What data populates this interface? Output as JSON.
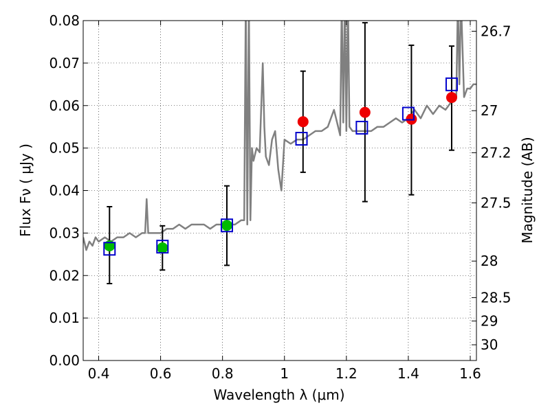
{
  "chart_data": {
    "type": "scatter",
    "title": "",
    "xlabel": "Wavelength  λ (μm)",
    "ylabel": "Flux  Fν  ( μJy )",
    "ylabel_right": "Magnitude (AB)",
    "xlim": [
      0.35,
      1.62
    ],
    "ylim": [
      0.0,
      0.08
    ],
    "grid": true,
    "x_ticks": [
      0.4,
      0.6,
      0.8,
      1.0,
      1.2,
      1.4,
      1.6
    ],
    "x_tick_labels": [
      "0.4",
      "0.6",
      "0.8",
      "1",
      "1.2",
      "1.4",
      "1.6"
    ],
    "y_ticks": [
      0.0,
      0.01,
      0.02,
      0.03,
      0.04,
      0.05,
      0.06,
      0.07,
      0.08
    ],
    "y_tick_labels": [
      "0.00",
      "0.01",
      "0.02",
      "0.03",
      "0.04",
      "0.05",
      "0.06",
      "0.07",
      "0.08"
    ],
    "right_ticks": [
      {
        "label": "26.7",
        "flux": 0.0775
      },
      {
        "label": "27",
        "flux": 0.0588
      },
      {
        "label": "27.2",
        "flux": 0.0489
      },
      {
        "label": "27.5",
        "flux": 0.0371
      },
      {
        "label": "28",
        "flux": 0.0234
      },
      {
        "label": "28.5",
        "flux": 0.0148
      },
      {
        "label": "29",
        "flux": 0.0093
      },
      {
        "label": "30",
        "flux": 0.0037
      }
    ],
    "series": [
      {
        "name": "model-spectrum",
        "type": "line",
        "color": "#808080",
        "x": [
          0.35,
          0.36,
          0.37,
          0.38,
          0.39,
          0.4,
          0.42,
          0.44,
          0.46,
          0.48,
          0.5,
          0.52,
          0.54,
          0.55,
          0.555,
          0.56,
          0.58,
          0.6,
          0.62,
          0.64,
          0.66,
          0.68,
          0.7,
          0.72,
          0.74,
          0.76,
          0.78,
          0.8,
          0.82,
          0.84,
          0.86,
          0.87,
          0.875,
          0.88,
          0.885,
          0.89,
          0.895,
          0.9,
          0.91,
          0.92,
          0.93,
          0.935,
          0.94,
          0.95,
          0.96,
          0.97,
          0.98,
          0.99,
          1.0,
          1.02,
          1.04,
          1.06,
          1.08,
          1.1,
          1.12,
          1.14,
          1.16,
          1.18,
          1.185,
          1.19,
          1.195,
          1.2,
          1.205,
          1.21,
          1.22,
          1.24,
          1.26,
          1.28,
          1.3,
          1.32,
          1.34,
          1.36,
          1.38,
          1.4,
          1.42,
          1.44,
          1.46,
          1.48,
          1.5,
          1.52,
          1.54,
          1.555,
          1.56,
          1.565,
          1.57,
          1.58,
          1.59,
          1.6,
          1.61,
          1.62
        ],
        "y": [
          0.029,
          0.026,
          0.028,
          0.027,
          0.029,
          0.028,
          0.029,
          0.028,
          0.029,
          0.029,
          0.03,
          0.029,
          0.03,
          0.03,
          0.038,
          0.03,
          0.03,
          0.03,
          0.031,
          0.031,
          0.032,
          0.031,
          0.032,
          0.032,
          0.032,
          0.031,
          0.032,
          0.032,
          0.032,
          0.032,
          0.033,
          0.033,
          0.085,
          0.032,
          0.085,
          0.033,
          0.05,
          0.047,
          0.05,
          0.049,
          0.07,
          0.055,
          0.048,
          0.046,
          0.052,
          0.054,
          0.045,
          0.04,
          0.052,
          0.051,
          0.052,
          0.052,
          0.053,
          0.054,
          0.054,
          0.055,
          0.059,
          0.053,
          0.085,
          0.056,
          0.085,
          0.054,
          0.085,
          0.055,
          0.054,
          0.054,
          0.054,
          0.054,
          0.055,
          0.055,
          0.056,
          0.057,
          0.056,
          0.057,
          0.059,
          0.057,
          0.06,
          0.058,
          0.06,
          0.059,
          0.061,
          0.062,
          0.085,
          0.065,
          0.085,
          0.062,
          0.064,
          0.064,
          0.065,
          0.065
        ]
      },
      {
        "name": "model-photometry",
        "type": "scatter",
        "marker": "open-square",
        "color": "#0000cc",
        "x": [
          0.435,
          0.606,
          0.814,
          1.055,
          1.25,
          1.4,
          1.54
        ],
        "y": [
          0.0263,
          0.0268,
          0.0318,
          0.0522,
          0.0548,
          0.0581,
          0.065
        ]
      },
      {
        "name": "detections",
        "type": "scatter",
        "marker": "filled-circle",
        "color": "#00bb00",
        "x": [
          0.435,
          0.606,
          0.814
        ],
        "y": [
          0.027,
          0.0265,
          0.0318
        ],
        "err_low": [
          0.0181,
          0.0213,
          0.0224
        ],
        "err_high": [
          0.0362,
          0.0317,
          0.0411
        ]
      },
      {
        "name": "upper-band-points",
        "type": "scatter",
        "marker": "filled-circle",
        "color": "#ee0000",
        "x": [
          1.06,
          1.26,
          1.41,
          1.54
        ],
        "y": [
          0.0562,
          0.0584,
          0.0568,
          0.0619
        ],
        "err_low": [
          0.0443,
          0.0374,
          0.039,
          0.0495
        ],
        "err_high": [
          0.0681,
          0.0795,
          0.0742,
          0.074
        ]
      }
    ]
  }
}
